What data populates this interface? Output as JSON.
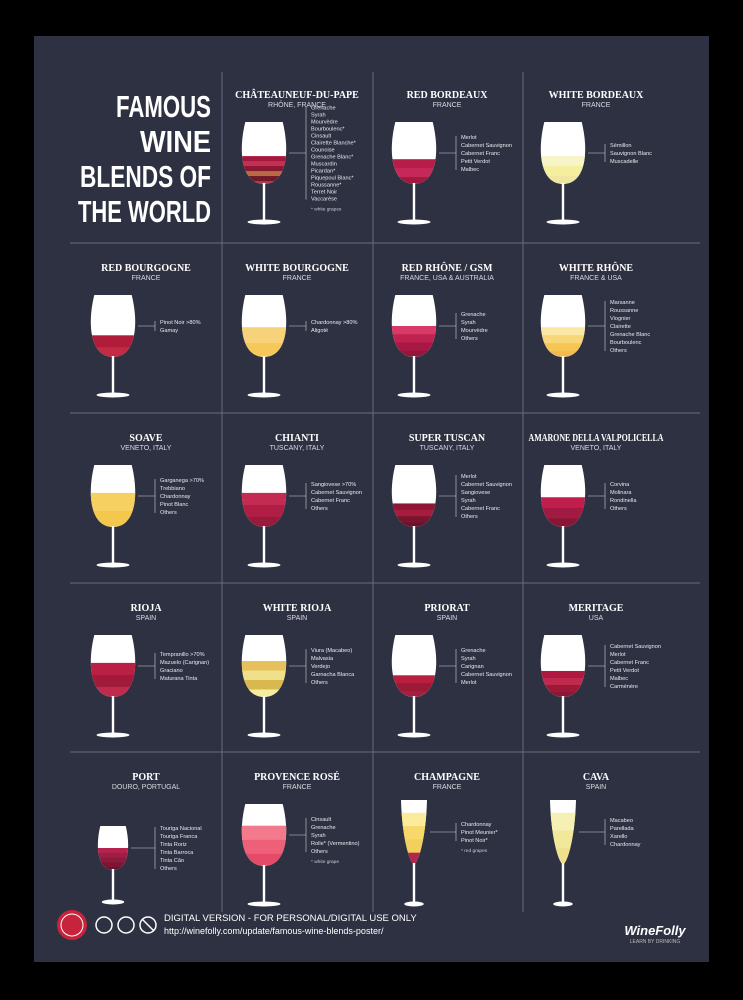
{
  "title": [
    "FAMOUS",
    "WINE",
    "BLENDS OF",
    "THE WORLD"
  ],
  "blends": [
    {
      "name": "CHÂTEAUNEUF-DU-PAPE",
      "region": "RHÔNE, FRANCE",
      "grapes": [
        "Grenache",
        "Syrah",
        "Mourvèdre",
        "Bourboulenc*",
        "Cinsault",
        "Clairette Blanche*",
        "Counoise",
        "Grenache Blanc*",
        "Muscardin",
        "Picardan*",
        "Piquepoul Blanc*",
        "Roussanne*",
        "Terret Noir",
        "Vaccarèse"
      ],
      "note": "* white grapes"
    },
    {
      "name": "RED BORDEAUX",
      "region": "FRANCE",
      "grapes": [
        "Merlot",
        "Cabernet Sauvignon",
        "Cabernet Franc",
        "Petit Verdot",
        "Malbec"
      ]
    },
    {
      "name": "WHITE BORDEAUX",
      "region": "FRANCE",
      "grapes": [
        "Sémillon",
        "Sauvignon Blanc",
        "Muscadelle"
      ]
    },
    {
      "name": "RED BOURGOGNE",
      "region": "FRANCE",
      "grapes": [
        "Pinot Noir >80%",
        "Gamay"
      ]
    },
    {
      "name": "WHITE BOURGOGNE",
      "region": "FRANCE",
      "grapes": [
        "Chardonnay >80%",
        "Aligoté"
      ]
    },
    {
      "name": "RED RHÔNE / GSM",
      "region": "FRANCE, USA & AUSTRALIA",
      "grapes": [
        "Grenache",
        "Syrah",
        "Mourvèdre",
        "Others"
      ]
    },
    {
      "name": "WHITE RHÔNE",
      "region": "FRANCE & USA",
      "grapes": [
        "Marsanne",
        "Roussanne",
        "Viognier",
        "Clairette",
        "Grenache Blanc",
        "Bourboulenc",
        "Others"
      ]
    },
    {
      "name": "SOAVE",
      "region": "VENETO, ITALY",
      "grapes": [
        "Garganega >70%",
        "Trebbiano",
        "Chardonnay",
        "Pinot Blanc",
        "Others"
      ]
    },
    {
      "name": "CHIANTI",
      "region": "TUSCANY, ITALY",
      "grapes": [
        "Sangiovese >70%",
        "Cabernet Sauvignon",
        "Cabernet Franc",
        "Others"
      ]
    },
    {
      "name": "SUPER TUSCAN",
      "region": "TUSCANY, ITALY",
      "grapes": [
        "Merlot",
        "Cabernet Sauvignon",
        "Sangiovese",
        "Syrah",
        "Cabernet Franc",
        "Others"
      ]
    },
    {
      "name": "AMARONE DELLA VALPOLICELLA",
      "region": "VENETO, ITALY",
      "grapes": [
        "Corvina",
        "Molinara",
        "Rondinella",
        "Others"
      ]
    },
    {
      "name": "RIOJA",
      "region": "SPAIN",
      "grapes": [
        "Tempranillo >70%",
        "Mazuelo (Carignan)",
        "Graciano",
        "Maturana Tinta"
      ]
    },
    {
      "name": "WHITE RIOJA",
      "region": "SPAIN",
      "grapes": [
        "Viura (Macabeo)",
        "Malvasia",
        "Verdejo",
        "Garnacha Blanca",
        "Others"
      ]
    },
    {
      "name": "PRIORAT",
      "region": "SPAIN",
      "grapes": [
        "Grenache",
        "Syrah",
        "Carignan",
        "Cabernet Sauvignon",
        "Merlot"
      ]
    },
    {
      "name": "MERITAGE",
      "region": "USA",
      "grapes": [
        "Cabernet Sauvignon",
        "Merlot",
        "Cabernet Franc",
        "Petit Verdot",
        "Malbec",
        "Carménère"
      ]
    },
    {
      "name": "PORT",
      "region": "DOURO, PORTUGAL",
      "grapes": [
        "Touriga Nacional",
        "Touriga Franca",
        "Tinta Roriz",
        "Tinta Barroca",
        "Tinta Cão",
        "Others"
      ]
    },
    {
      "name": "PROVENCE ROSÉ",
      "region": "FRANCE",
      "grapes": [
        "Cinsault",
        "Grenache",
        "Syrah",
        "Rolle* (Vermentino)",
        "Others"
      ],
      "note": "* white grape"
    },
    {
      "name": "CHAMPAGNE",
      "region": "FRANCE",
      "grapes": [
        "Chardonnay",
        "Pinot Meunier*",
        "Pinot Noir*"
      ],
      "note": "* red grapes"
    },
    {
      "name": "CAVA",
      "region": "SPAIN",
      "grapes": [
        "Macabeo",
        "Parellada",
        "Xarello",
        "Chardonnay"
      ]
    }
  ],
  "footer": {
    "notice": "DIGITAL VERSION - FOR PERSONAL/DIGITAL USE ONLY",
    "url": "http://winefolly.com/update/famous-wine-blends-poster/",
    "brand": "WineFolly",
    "tagline": "LEARN BY DRINKING"
  }
}
